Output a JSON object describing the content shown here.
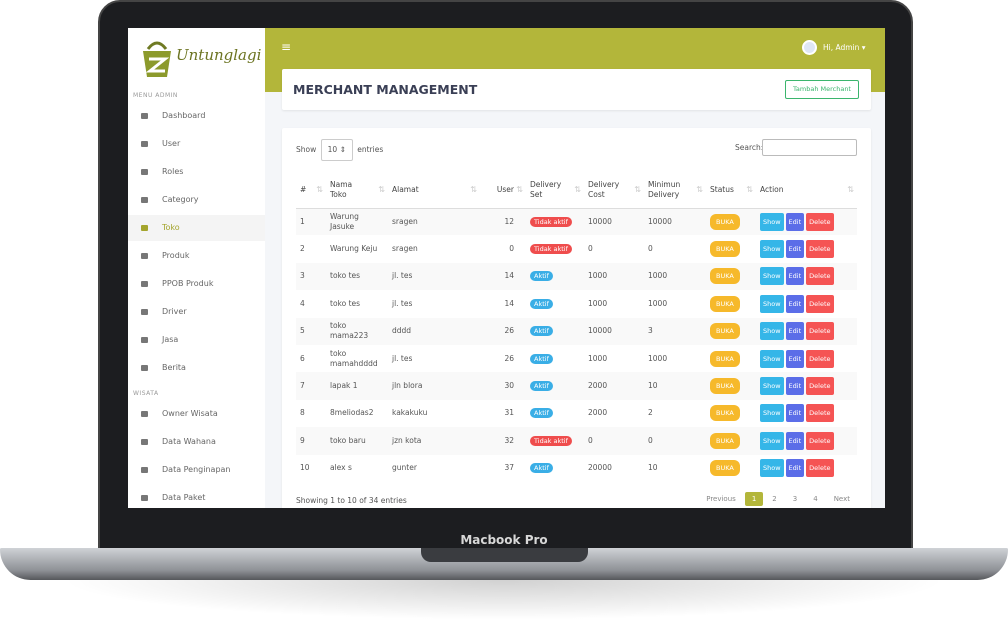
{
  "device_label": "Macbook Pro",
  "sidebar": {
    "brand": "Untunglagi",
    "sections": [
      {
        "title": "MENU ADMIN",
        "items": [
          {
            "label": "Dashboard"
          },
          {
            "label": "User"
          },
          {
            "label": "Roles"
          },
          {
            "label": "Category"
          },
          {
            "label": "Toko",
            "active": true
          },
          {
            "label": "Produk"
          },
          {
            "label": "PPOB Produk"
          },
          {
            "label": "Driver"
          },
          {
            "label": "Jasa"
          },
          {
            "label": "Berita"
          }
        ]
      },
      {
        "title": "WISATA",
        "items": [
          {
            "label": "Owner Wisata"
          },
          {
            "label": "Data Wahana"
          },
          {
            "label": "Data Penginapan"
          },
          {
            "label": "Data Paket"
          }
        ]
      }
    ]
  },
  "topbar": {
    "user": "Hi, Admin"
  },
  "header": {
    "title": "MERCHANT MANAGEMENT",
    "button": "Tambah Merchant"
  },
  "table": {
    "show_label": "Show",
    "length": 10,
    "entries_label": "entries",
    "search_label": "Search:",
    "columns": [
      "#",
      "Nama Toko",
      "Alamat",
      "User",
      "Delivery Set",
      "Delivery Cost",
      "Minimun Delivery",
      "Status",
      "Action"
    ],
    "rows": [
      [
        1,
        "Warung Jasuke",
        "sragen",
        12,
        {
          "label": "Tidak aktif",
          "color": "#ef4d4d"
        },
        10000,
        10000,
        {
          "label": "BUKA",
          "color": "#f6b92b"
        }
      ],
      [
        2,
        "Warung Keju",
        "sragen",
        0,
        {
          "label": "Tidak aktif",
          "color": "#ef4d4d"
        },
        0,
        0,
        {
          "label": "BUKA",
          "color": "#f6b92b"
        }
      ],
      [
        3,
        "toko tes",
        "jl. tes",
        14,
        {
          "label": "Aktif",
          "color": "#3aaee6"
        },
        1000,
        1000,
        {
          "label": "BUKA",
          "color": "#f6b92b"
        }
      ],
      [
        4,
        "toko tes",
        "jl. tes",
        14,
        {
          "label": "Aktif",
          "color": "#3aaee6"
        },
        1000,
        1000,
        {
          "label": "BUKA",
          "color": "#f6b92b"
        }
      ],
      [
        5,
        "toko mama223",
        "dddd",
        26,
        {
          "label": "Aktif",
          "color": "#3aaee6"
        },
        10000,
        3,
        {
          "label": "BUKA",
          "color": "#f6b92b"
        }
      ],
      [
        6,
        "toko mamahdddd",
        "jl. tes",
        26,
        {
          "label": "Aktif",
          "color": "#3aaee6"
        },
        1000,
        1000,
        {
          "label": "BUKA",
          "color": "#f6b92b"
        }
      ],
      [
        7,
        "lapak 1",
        "jln blora",
        30,
        {
          "label": "Aktif",
          "color": "#3aaee6"
        },
        2000,
        10,
        {
          "label": "BUKA",
          "color": "#f6b92b"
        }
      ],
      [
        8,
        "8meliodas2",
        "kakakuku",
        31,
        {
          "label": "Aktif",
          "color": "#3aaee6"
        },
        2000,
        2,
        {
          "label": "BUKA",
          "color": "#f6b92b"
        }
      ],
      [
        9,
        "toko baru",
        "jzn kota",
        32,
        {
          "label": "Tidak aktif",
          "color": "#ef4d4d"
        },
        0,
        0,
        {
          "label": "BUKA",
          "color": "#f6b92b"
        }
      ],
      [
        10,
        "alex s",
        "gunter",
        37,
        {
          "label": "Aktif",
          "color": "#3aaee6"
        },
        20000,
        10,
        {
          "label": "BUKA",
          "color": "#f6b92b"
        }
      ]
    ],
    "actions": [
      {
        "label": "Show",
        "color": "#35b6e8"
      },
      {
        "label": "Edit",
        "color": "#5b6de8"
      },
      {
        "label": "Delete",
        "color": "#f55454"
      }
    ],
    "info": "Showing 1 to 10 of 34 entries",
    "pagination": [
      "Previous",
      1,
      2,
      3,
      4,
      "Next"
    ],
    "current_page": 1
  }
}
